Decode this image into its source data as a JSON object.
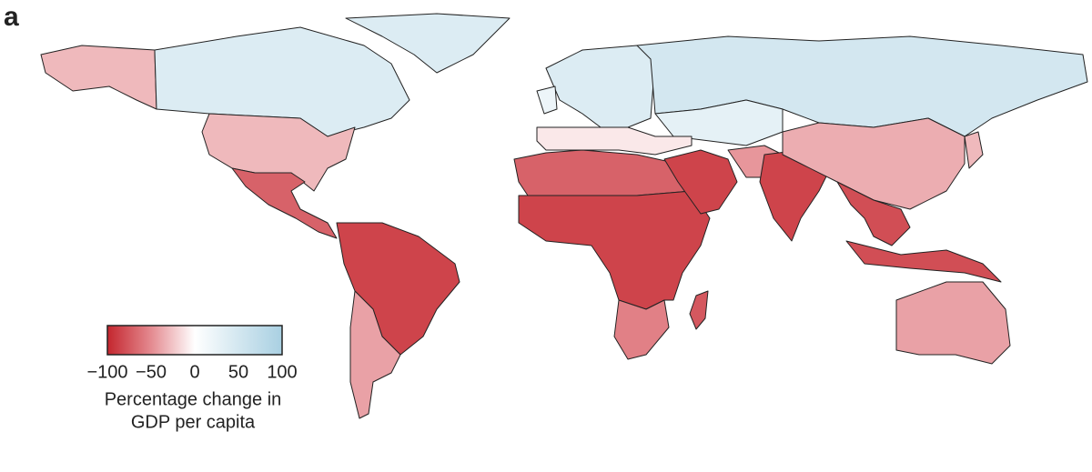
{
  "panel_label": "a",
  "legend": {
    "title_lines": [
      "Percentage change in",
      "GDP per capita"
    ],
    "ticks": [
      {
        "value": -100,
        "label": "−100"
      },
      {
        "value": -50,
        "label": "−50"
      },
      0,
      50,
      100
    ],
    "colors": [
      "#c4262e",
      "#e48a90",
      "#ffffff",
      "#d3e7f0",
      "#a9d0e2"
    ]
  },
  "regions": [
    {
      "value": -30
    },
    {
      "value": 40
    },
    {
      "value": 40
    },
    {
      "value": -30
    },
    {
      "value": -70
    },
    {
      "value": -85
    },
    {
      "value": -40
    },
    {
      "value": 40
    },
    {
      "value": 50
    },
    {
      "value": 30
    },
    {
      "value": -10
    },
    {
      "value": -70
    },
    {
      "value": -85
    },
    {
      "value": -55
    },
    {
      "value": -85
    },
    {
      "value": -45
    },
    {
      "value": -85
    },
    {
      "value": -35
    },
    {
      "value": -80
    },
    {
      "value": -80
    },
    {
      "value": -40
    },
    {
      "value": -75
    },
    {
      "value": -30
    },
    {
      "value": 20
    }
  ]
}
